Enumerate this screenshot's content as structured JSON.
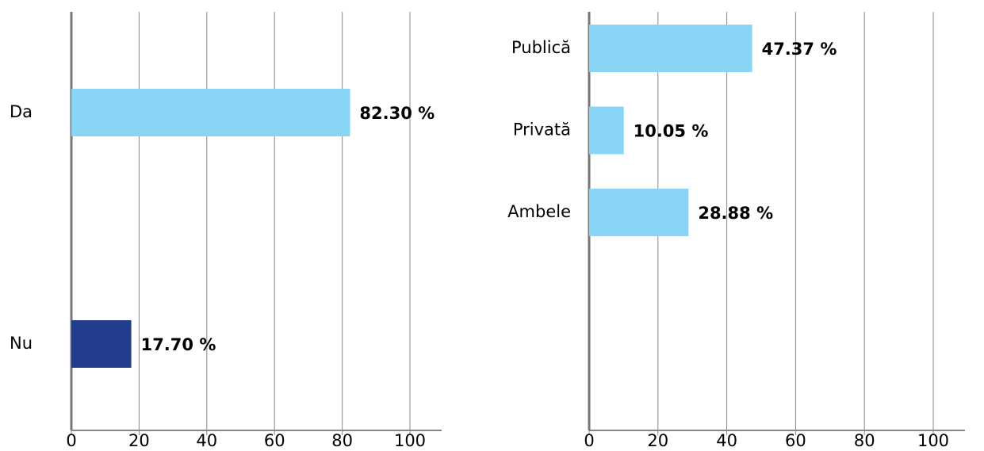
{
  "chart_data": [
    {
      "type": "bar",
      "orientation": "horizontal",
      "categories": [
        "Da",
        "Nu"
      ],
      "values": [
        82.3,
        17.7
      ],
      "value_labels": [
        "82.30 %",
        "17.70 %"
      ],
      "colors": [
        "#87d4f5",
        "#233d8c"
      ],
      "xlim": [
        0,
        100
      ],
      "xticks": [
        0,
        20,
        40,
        60,
        80,
        100
      ],
      "grid": true
    },
    {
      "type": "bar",
      "orientation": "horizontal",
      "categories": [
        "Publică",
        "Privată",
        "Ambele"
      ],
      "values": [
        47.37,
        10.05,
        28.88
      ],
      "value_labels": [
        "47.37 %",
        "10.05 %",
        "28.88 %"
      ],
      "colors": [
        "#87d4f5",
        "#87d4f5",
        "#87d4f5"
      ],
      "xlim": [
        0,
        100
      ],
      "xticks": [
        0,
        20,
        40,
        60,
        80,
        100
      ],
      "grid": true
    }
  ]
}
